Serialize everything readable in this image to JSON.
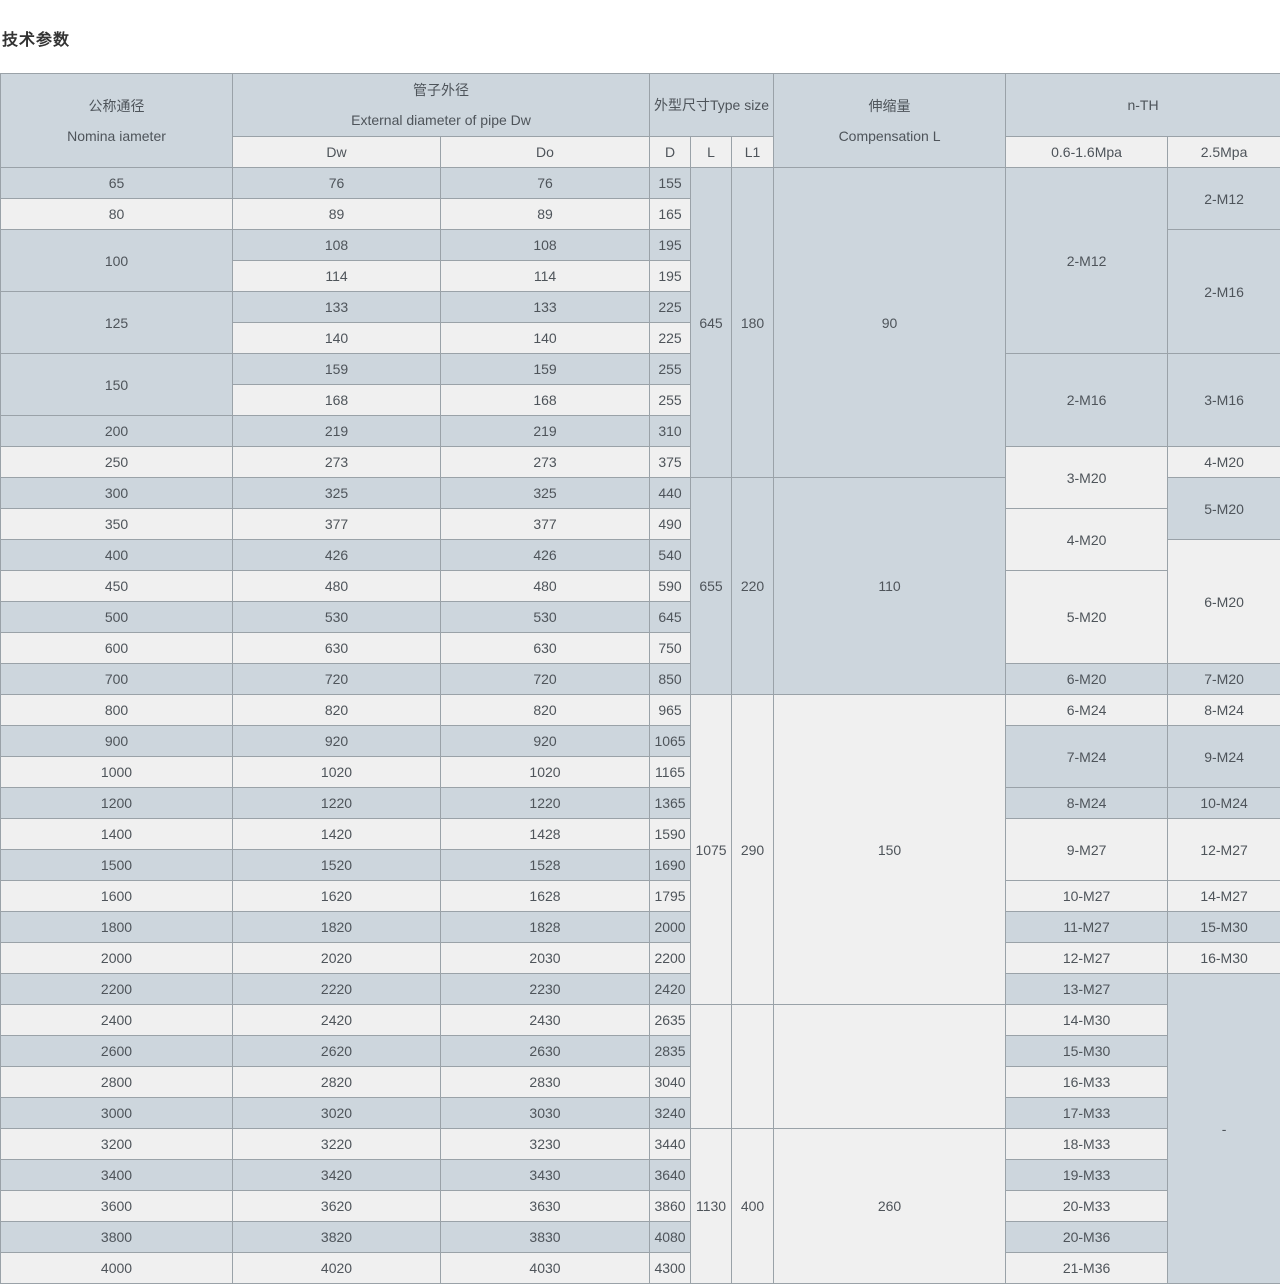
{
  "page_title": "技术参数",
  "colors": {
    "row_blue": "#cdd6dd",
    "row_light": "#f0f0f0",
    "header_main": "#cdd6dd",
    "header_sub": "#f0f0f0",
    "border": "#9aa2a8",
    "text": "#4e545a",
    "title_text": "#333333"
  },
  "table": {
    "header": {
      "nominal_zh": "公称通径",
      "nominal_en": "Nomina iameter",
      "pipe_zh": "管子外径",
      "pipe_en": "External diameter of pipe Dw",
      "type_size": "外型尺寸Type size",
      "comp_zh": "伸缩量",
      "comp_en": "Compensation L",
      "nth": "n-TH",
      "sub_dw": "Dw",
      "sub_do": "Do",
      "sub_d": "D",
      "sub_l": "L",
      "sub_l1": "L1",
      "sub_p1": "0.6-1.6Mpa",
      "sub_p2": "2.5Mpa"
    },
    "rows": [
      {
        "shade": "blue",
        "cells": [
          {
            "c": "dn",
            "t": "65"
          },
          {
            "c": "dw",
            "t": "76"
          },
          {
            "c": "do",
            "t": "76"
          },
          {
            "c": "d",
            "t": "155"
          },
          {
            "c": "l",
            "t": "645",
            "rs": 10,
            "bg": "blue"
          },
          {
            "c": "l1",
            "t": "180",
            "rs": 10,
            "bg": "blue"
          },
          {
            "c": "comp",
            "t": "90",
            "rs": 10,
            "bg": "blue"
          },
          {
            "c": "p1",
            "t": "2-M12",
            "rs": 6,
            "bg": "blue"
          },
          {
            "c": "p2",
            "t": "2-M12",
            "rs": 2,
            "bg": "blue"
          }
        ]
      },
      {
        "shade": "light",
        "cells": [
          {
            "c": "dn",
            "t": "80"
          },
          {
            "c": "dw",
            "t": "89"
          },
          {
            "c": "do",
            "t": "89"
          },
          {
            "c": "d",
            "t": "165"
          }
        ]
      },
      {
        "shade": "blue",
        "cells": [
          {
            "c": "dn",
            "t": "100",
            "rs": 2,
            "bg": "blue"
          },
          {
            "c": "dw",
            "t": "108"
          },
          {
            "c": "do",
            "t": "108"
          },
          {
            "c": "d",
            "t": "195"
          },
          {
            "c": "p2",
            "t": "2-M16",
            "rs": 4,
            "bg": "blue"
          }
        ]
      },
      {
        "shade": "light",
        "cells": [
          {
            "c": "dw",
            "t": "114"
          },
          {
            "c": "do",
            "t": "114"
          },
          {
            "c": "d",
            "t": "195"
          }
        ]
      },
      {
        "shade": "blue",
        "cells": [
          {
            "c": "dn",
            "t": "125",
            "rs": 2,
            "bg": "blue"
          },
          {
            "c": "dw",
            "t": "133"
          },
          {
            "c": "do",
            "t": "133"
          },
          {
            "c": "d",
            "t": "225"
          }
        ]
      },
      {
        "shade": "light",
        "cells": [
          {
            "c": "dw",
            "t": "140"
          },
          {
            "c": "do",
            "t": "140"
          },
          {
            "c": "d",
            "t": "225"
          }
        ]
      },
      {
        "shade": "blue",
        "cells": [
          {
            "c": "dn",
            "t": "150",
            "rs": 2,
            "bg": "blue"
          },
          {
            "c": "dw",
            "t": "159"
          },
          {
            "c": "do",
            "t": "159"
          },
          {
            "c": "d",
            "t": "255"
          },
          {
            "c": "p1",
            "t": "2-M16",
            "rs": 3,
            "bg": "blue"
          },
          {
            "c": "p2",
            "t": "3-M16",
            "rs": 3,
            "bg": "blue"
          }
        ]
      },
      {
        "shade": "light",
        "cells": [
          {
            "c": "dw",
            "t": "168"
          },
          {
            "c": "do",
            "t": "168"
          },
          {
            "c": "d",
            "t": "255"
          }
        ]
      },
      {
        "shade": "blue",
        "cells": [
          {
            "c": "dn",
            "t": "200"
          },
          {
            "c": "dw",
            "t": "219"
          },
          {
            "c": "do",
            "t": "219"
          },
          {
            "c": "d",
            "t": "310"
          }
        ]
      },
      {
        "shade": "light",
        "cells": [
          {
            "c": "dn",
            "t": "250"
          },
          {
            "c": "dw",
            "t": "273"
          },
          {
            "c": "do",
            "t": "273"
          },
          {
            "c": "d",
            "t": "375"
          },
          {
            "c": "p1",
            "t": "3-M20",
            "rs": 2,
            "bg": "light"
          },
          {
            "c": "p2",
            "t": "4-M20",
            "bg": "light"
          }
        ]
      },
      {
        "shade": "blue",
        "cells": [
          {
            "c": "dn",
            "t": "300"
          },
          {
            "c": "dw",
            "t": "325"
          },
          {
            "c": "do",
            "t": "325"
          },
          {
            "c": "d",
            "t": "440"
          },
          {
            "c": "l",
            "t": "655",
            "rs": 7,
            "bg": "blue"
          },
          {
            "c": "l1",
            "t": "220",
            "rs": 7,
            "bg": "blue"
          },
          {
            "c": "comp",
            "t": "110",
            "rs": 7,
            "bg": "blue"
          },
          {
            "c": "p2",
            "t": "5-M20",
            "rs": 2,
            "bg": "blue"
          }
        ]
      },
      {
        "shade": "light",
        "cells": [
          {
            "c": "dn",
            "t": "350"
          },
          {
            "c": "dw",
            "t": "377"
          },
          {
            "c": "do",
            "t": "377"
          },
          {
            "c": "d",
            "t": "490"
          },
          {
            "c": "p1",
            "t": "4-M20",
            "rs": 2,
            "bg": "light"
          }
        ]
      },
      {
        "shade": "blue",
        "cells": [
          {
            "c": "dn",
            "t": "400"
          },
          {
            "c": "dw",
            "t": "426"
          },
          {
            "c": "do",
            "t": "426"
          },
          {
            "c": "d",
            "t": "540"
          },
          {
            "c": "p2",
            "t": "6-M20",
            "rs": 4,
            "bg": "light"
          }
        ]
      },
      {
        "shade": "light",
        "cells": [
          {
            "c": "dn",
            "t": "450"
          },
          {
            "c": "dw",
            "t": "480"
          },
          {
            "c": "do",
            "t": "480"
          },
          {
            "c": "d",
            "t": "590"
          },
          {
            "c": "p1",
            "t": "5-M20",
            "rs": 3,
            "bg": "light"
          }
        ]
      },
      {
        "shade": "blue",
        "cells": [
          {
            "c": "dn",
            "t": "500"
          },
          {
            "c": "dw",
            "t": "530"
          },
          {
            "c": "do",
            "t": "530"
          },
          {
            "c": "d",
            "t": "645"
          }
        ]
      },
      {
        "shade": "light",
        "cells": [
          {
            "c": "dn",
            "t": "600"
          },
          {
            "c": "dw",
            "t": "630"
          },
          {
            "c": "do",
            "t": "630"
          },
          {
            "c": "d",
            "t": "750"
          }
        ]
      },
      {
        "shade": "blue",
        "cells": [
          {
            "c": "dn",
            "t": "700"
          },
          {
            "c": "dw",
            "t": "720"
          },
          {
            "c": "do",
            "t": "720"
          },
          {
            "c": "d",
            "t": "850"
          },
          {
            "c": "p1",
            "t": "6-M20",
            "bg": "blue"
          },
          {
            "c": "p2",
            "t": "7-M20",
            "bg": "blue"
          }
        ]
      },
      {
        "shade": "light",
        "cells": [
          {
            "c": "dn",
            "t": "800"
          },
          {
            "c": "dw",
            "t": "820"
          },
          {
            "c": "do",
            "t": "820"
          },
          {
            "c": "d",
            "t": "965"
          },
          {
            "c": "l",
            "t": "1075",
            "rs": 10,
            "bg": "light"
          },
          {
            "c": "l1",
            "t": "290",
            "rs": 10,
            "bg": "light"
          },
          {
            "c": "comp",
            "t": "150",
            "rs": 10,
            "bg": "light"
          },
          {
            "c": "p1",
            "t": "6-M24",
            "bg": "light"
          },
          {
            "c": "p2",
            "t": "8-M24",
            "bg": "light"
          }
        ]
      },
      {
        "shade": "blue",
        "cells": [
          {
            "c": "dn",
            "t": "900"
          },
          {
            "c": "dw",
            "t": "920"
          },
          {
            "c": "do",
            "t": "920"
          },
          {
            "c": "d",
            "t": "1065"
          },
          {
            "c": "p1",
            "t": "7-M24",
            "rs": 2,
            "bg": "blue"
          },
          {
            "c": "p2",
            "t": "9-M24",
            "rs": 2,
            "bg": "blue"
          }
        ]
      },
      {
        "shade": "light",
        "cells": [
          {
            "c": "dn",
            "t": "1000"
          },
          {
            "c": "dw",
            "t": "1020"
          },
          {
            "c": "do",
            "t": "1020"
          },
          {
            "c": "d",
            "t": "1165"
          }
        ]
      },
      {
        "shade": "blue",
        "cells": [
          {
            "c": "dn",
            "t": "1200"
          },
          {
            "c": "dw",
            "t": "1220"
          },
          {
            "c": "do",
            "t": "1220"
          },
          {
            "c": "d",
            "t": "1365"
          },
          {
            "c": "p1",
            "t": "8-M24",
            "bg": "blue"
          },
          {
            "c": "p2",
            "t": "10-M24",
            "bg": "blue"
          }
        ]
      },
      {
        "shade": "light",
        "cells": [
          {
            "c": "dn",
            "t": "1400"
          },
          {
            "c": "dw",
            "t": "1420"
          },
          {
            "c": "do",
            "t": "1428"
          },
          {
            "c": "d",
            "t": "1590"
          },
          {
            "c": "p1",
            "t": "9-M27",
            "rs": 2,
            "bg": "light"
          },
          {
            "c": "p2",
            "t": "12-M27",
            "rs": 2,
            "bg": "light"
          }
        ]
      },
      {
        "shade": "blue",
        "cells": [
          {
            "c": "dn",
            "t": "1500"
          },
          {
            "c": "dw",
            "t": "1520"
          },
          {
            "c": "do",
            "t": "1528"
          },
          {
            "c": "d",
            "t": "1690"
          }
        ]
      },
      {
        "shade": "light",
        "cells": [
          {
            "c": "dn",
            "t": "1600"
          },
          {
            "c": "dw",
            "t": "1620"
          },
          {
            "c": "do",
            "t": "1628"
          },
          {
            "c": "d",
            "t": "1795"
          },
          {
            "c": "p1",
            "t": "10-M27",
            "bg": "light"
          },
          {
            "c": "p2",
            "t": "14-M27",
            "bg": "light"
          }
        ]
      },
      {
        "shade": "blue",
        "cells": [
          {
            "c": "dn",
            "t": "1800"
          },
          {
            "c": "dw",
            "t": "1820"
          },
          {
            "c": "do",
            "t": "1828"
          },
          {
            "c": "d",
            "t": "2000"
          },
          {
            "c": "p1",
            "t": "11-M27",
            "bg": "blue"
          },
          {
            "c": "p2",
            "t": "15-M30",
            "bg": "blue"
          }
        ]
      },
      {
        "shade": "light",
        "cells": [
          {
            "c": "dn",
            "t": "2000"
          },
          {
            "c": "dw",
            "t": "2020"
          },
          {
            "c": "do",
            "t": "2030"
          },
          {
            "c": "d",
            "t": "2200"
          },
          {
            "c": "p1",
            "t": "12-M27",
            "bg": "light"
          },
          {
            "c": "p2",
            "t": "16-M30",
            "bg": "light"
          }
        ]
      },
      {
        "shade": "blue",
        "cells": [
          {
            "c": "dn",
            "t": "2200"
          },
          {
            "c": "dw",
            "t": "2220"
          },
          {
            "c": "do",
            "t": "2230"
          },
          {
            "c": "d",
            "t": "2420"
          },
          {
            "c": "p1",
            "t": "13-M27",
            "bg": "blue"
          },
          {
            "c": "p2",
            "t": "-",
            "rs": 10,
            "bg": "blue"
          }
        ]
      },
      {
        "shade": "light",
        "cells": [
          {
            "c": "dn",
            "t": "2400"
          },
          {
            "c": "dw",
            "t": "2420"
          },
          {
            "c": "do",
            "t": "2430"
          },
          {
            "c": "d",
            "t": "2635"
          },
          {
            "c": "l",
            "t": "",
            "rs": 4,
            "bg": "light"
          },
          {
            "c": "l1",
            "t": "",
            "rs": 4,
            "bg": "light"
          },
          {
            "c": "comp",
            "t": "",
            "rs": 4,
            "bg": "light"
          },
          {
            "c": "p1",
            "t": "14-M30",
            "bg": "light"
          }
        ]
      },
      {
        "shade": "blue",
        "cells": [
          {
            "c": "dn",
            "t": "2600"
          },
          {
            "c": "dw",
            "t": "2620"
          },
          {
            "c": "do",
            "t": "2630"
          },
          {
            "c": "d",
            "t": "2835"
          },
          {
            "c": "p1",
            "t": "15-M30",
            "bg": "blue"
          }
        ]
      },
      {
        "shade": "light",
        "cells": [
          {
            "c": "dn",
            "t": "2800"
          },
          {
            "c": "dw",
            "t": "2820"
          },
          {
            "c": "do",
            "t": "2830"
          },
          {
            "c": "d",
            "t": "3040"
          },
          {
            "c": "p1",
            "t": "16-M33",
            "bg": "light"
          }
        ]
      },
      {
        "shade": "blue",
        "cells": [
          {
            "c": "dn",
            "t": "3000"
          },
          {
            "c": "dw",
            "t": "3020"
          },
          {
            "c": "do",
            "t": "3030"
          },
          {
            "c": "d",
            "t": "3240"
          },
          {
            "c": "p1",
            "t": "17-M33",
            "bg": "blue"
          }
        ]
      },
      {
        "shade": "light",
        "cells": [
          {
            "c": "dn",
            "t": "3200"
          },
          {
            "c": "dw",
            "t": "3220"
          },
          {
            "c": "do",
            "t": "3230"
          },
          {
            "c": "d",
            "t": "3440"
          },
          {
            "c": "l",
            "t": "1130",
            "rs": 5,
            "bg": "light"
          },
          {
            "c": "l1",
            "t": "400",
            "rs": 5,
            "bg": "light"
          },
          {
            "c": "comp",
            "t": "260",
            "rs": 5,
            "bg": "light"
          },
          {
            "c": "p1",
            "t": "18-M33",
            "bg": "light"
          }
        ]
      },
      {
        "shade": "blue",
        "cells": [
          {
            "c": "dn",
            "t": "3400"
          },
          {
            "c": "dw",
            "t": "3420"
          },
          {
            "c": "do",
            "t": "3430"
          },
          {
            "c": "d",
            "t": "3640"
          },
          {
            "c": "p1",
            "t": "19-M33",
            "bg": "blue"
          }
        ]
      },
      {
        "shade": "light",
        "cells": [
          {
            "c": "dn",
            "t": "3600"
          },
          {
            "c": "dw",
            "t": "3620"
          },
          {
            "c": "do",
            "t": "3630"
          },
          {
            "c": "d",
            "t": "3860"
          },
          {
            "c": "p1",
            "t": "20-M33",
            "bg": "light"
          }
        ]
      },
      {
        "shade": "blue",
        "cells": [
          {
            "c": "dn",
            "t": "3800"
          },
          {
            "c": "dw",
            "t": "3820"
          },
          {
            "c": "do",
            "t": "3830"
          },
          {
            "c": "d",
            "t": "4080"
          },
          {
            "c": "p1",
            "t": "20-M36",
            "bg": "blue"
          }
        ]
      },
      {
        "shade": "light",
        "cells": [
          {
            "c": "dn",
            "t": "4000"
          },
          {
            "c": "dw",
            "t": "4020"
          },
          {
            "c": "do",
            "t": "4030"
          },
          {
            "c": "d",
            "t": "4300"
          },
          {
            "c": "p1",
            "t": "21-M36",
            "bg": "light"
          }
        ]
      }
    ]
  }
}
